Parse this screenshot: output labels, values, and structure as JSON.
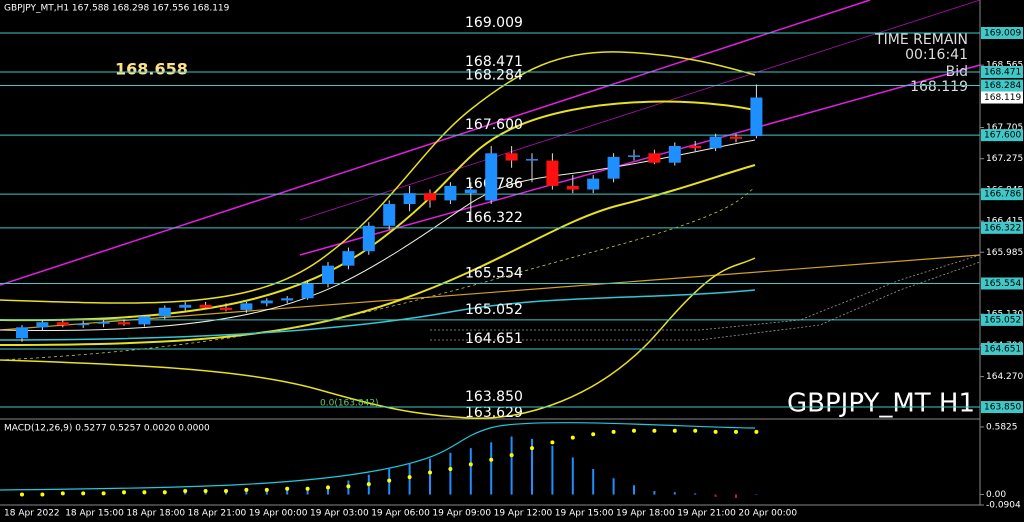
{
  "chart_data": [
    {
      "type": "candlestick",
      "title": "GBPJPY_MT,H1  167.588 168.298 167.556 168.119",
      "watermark": "GBPJPY_MT H1",
      "highlight_price": 168.658,
      "time_remain_label": "TIME REMAIN",
      "time_remain": "00:16:41",
      "bid_label": "Bid",
      "bid": 168.119,
      "fib_label": "0.0(163.842)",
      "lower_label": 163.629,
      "categories": [
        "18 Apr 2022",
        null,
        null,
        "18 Apr 15:00",
        null,
        null,
        "18 Apr 18:00",
        null,
        null,
        "18 Apr 21:00",
        null,
        null,
        "19 Apr 00:00",
        null,
        null,
        "19 Apr 03:00",
        null,
        null,
        "19 Apr 06:00",
        null,
        null,
        "19 Apr 09:00",
        null,
        null,
        "19 Apr 12:00",
        null,
        null,
        "19 Apr 15:00",
        null,
        null,
        "19 Apr 18:00",
        null,
        null,
        "19 Apr 21:00",
        null,
        null,
        "20 Apr 00:00"
      ],
      "open": [
        164.8,
        164.95,
        165.02,
        164.98,
        165.0,
        165.02,
        164.99,
        165.1,
        165.22,
        165.26,
        165.22,
        165.19,
        165.28,
        165.32,
        165.35,
        165.55,
        165.8,
        166.0,
        166.35,
        166.65,
        166.8,
        166.7,
        166.8,
        166.7,
        167.35,
        167.25,
        167.25,
        166.9,
        166.85,
        167.0,
        167.3,
        167.35,
        167.22,
        167.45,
        167.42,
        167.58,
        167.588
      ],
      "high": [
        164.98,
        165.05,
        165.06,
        165.04,
        165.05,
        165.06,
        165.12,
        165.25,
        165.3,
        165.3,
        165.28,
        165.3,
        165.35,
        165.38,
        165.6,
        165.85,
        166.05,
        166.4,
        166.7,
        166.9,
        166.85,
        166.95,
        166.95,
        167.45,
        167.45,
        167.35,
        167.35,
        167.05,
        167.05,
        167.35,
        167.4,
        167.4,
        167.5,
        167.52,
        167.62,
        167.62,
        168.298
      ],
      "low": [
        164.75,
        164.9,
        164.95,
        164.94,
        164.95,
        164.97,
        164.96,
        165.06,
        165.18,
        165.2,
        165.17,
        165.15,
        165.24,
        165.28,
        165.33,
        165.5,
        165.75,
        165.95,
        166.3,
        166.55,
        166.6,
        166.65,
        166.4,
        166.65,
        167.15,
        166.95,
        166.85,
        166.8,
        166.8,
        166.95,
        167.25,
        167.2,
        167.18,
        167.38,
        167.38,
        167.5,
        167.556
      ],
      "close": [
        164.95,
        165.02,
        164.98,
        165.0,
        165.02,
        164.99,
        165.1,
        165.22,
        165.26,
        165.22,
        165.19,
        165.28,
        165.32,
        165.35,
        165.55,
        165.8,
        166.0,
        166.35,
        166.65,
        166.8,
        166.7,
        166.9,
        166.85,
        167.35,
        167.25,
        167.27,
        166.9,
        166.85,
        167.0,
        167.3,
        167.32,
        167.22,
        167.45,
        167.42,
        167.58,
        167.55,
        168.119
      ],
      "up_color": "#1e8fff",
      "down_color": "#ff1010",
      "levels": [
        169.009,
        168.471,
        168.284,
        {
          "value": 167.6,
          "label": "167.600"
        },
        166.786,
        166.322,
        165.554,
        165.052,
        164.651,
        {
          "value": 163.85,
          "label": "163.850"
        }
      ],
      "level_color": "#40c8c8",
      "yticks": [
        168.565,
        167.705,
        167.275,
        166.845,
        166.415,
        165.985,
        {
          "value": 165.13,
          "label": "165.130"
        },
        {
          "value": 164.7,
          "label": "164.700"
        },
        {
          "value": 164.27,
          "label": "164.270"
        }
      ],
      "ylim": [
        163.699,
        169.464
      ]
    },
    {
      "type": "bar",
      "title": "MACD(12,26,9) 0.5277 0.5257 0.0020 0.0000",
      "values": [
        0.0,
        0.01,
        0.01,
        0.01,
        0.02,
        0.02,
        0.03,
        0.03,
        0.03,
        0.04,
        0.04,
        0.05,
        0.05,
        0.05,
        0.06,
        0.08,
        0.12,
        0.17,
        0.23,
        0.27,
        0.31,
        0.36,
        0.4,
        0.45,
        0.5,
        0.48,
        0.42,
        0.32,
        0.22,
        0.14,
        0.08,
        0.03,
        0.02,
        0.01,
        -0.02,
        -0.03,
        0.0
      ],
      "signal": [
        0.0,
        0.0,
        0.01,
        0.01,
        0.01,
        0.02,
        0.02,
        0.02,
        0.03,
        0.03,
        0.03,
        0.04,
        0.04,
        0.05,
        0.05,
        0.06,
        0.07,
        0.09,
        0.12,
        0.15,
        0.19,
        0.22,
        0.26,
        0.3,
        0.34,
        0.4,
        0.45,
        0.49,
        0.52,
        0.54,
        0.55,
        0.55,
        0.55,
        0.55,
        0.54,
        0.54,
        0.54
      ],
      "color": "#1e8fff",
      "signal_color": "#ffff00",
      "yticks": [
        0.5825,
        {
          "value": 0,
          "label": "0.00"
        },
        -0.0904
      ],
      "ylim": [
        -0.0904,
        0.6425
      ]
    }
  ]
}
